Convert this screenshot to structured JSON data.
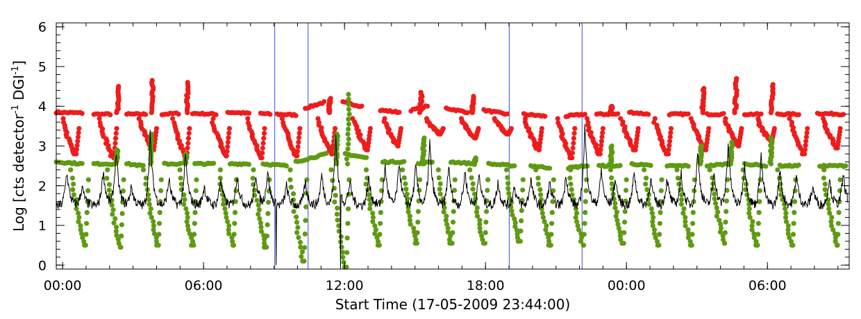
{
  "chart_data": {
    "type": "scatter",
    "title": "",
    "xlabel": "Start Time (17-05-2009 23:44:00)",
    "ylabel_parts": {
      "prefix": "Log [cts detector",
      "sup1": "-1",
      "mid": " DGI",
      "sup2": "-1",
      "suffix": "]"
    },
    "x_unit": "hours since start",
    "xlim": [
      0,
      33.75
    ],
    "ylim": [
      -0.1,
      6.1
    ],
    "x_ticks": [
      {
        "x": 0.27,
        "label": "00:00"
      },
      {
        "x": 6.27,
        "label": "06:00"
      },
      {
        "x": 12.27,
        "label": "12:00"
      },
      {
        "x": 18.27,
        "label": "18:00"
      },
      {
        "x": 24.27,
        "label": "00:00"
      },
      {
        "x": 30.27,
        "label": "06:00"
      }
    ],
    "y_ticks": [
      {
        "y": 0,
        "label": "0"
      },
      {
        "y": 1,
        "label": "1"
      },
      {
        "y": 2,
        "label": "2"
      },
      {
        "y": 3,
        "label": "3"
      },
      {
        "y": 4,
        "label": "4"
      },
      {
        "y": 5,
        "label": "5"
      },
      {
        "y": 6,
        "label": "6"
      }
    ],
    "vertical_lines": [
      {
        "x": 9.3,
        "color": "#3b4bd6"
      },
      {
        "x": 10.72,
        "color": "#3b4bd6"
      },
      {
        "x": 19.28,
        "color": "#3b4bd6"
      },
      {
        "x": 22.38,
        "color": "#3b4bd6"
      }
    ],
    "series": [
      {
        "color": "#ee1c1c",
        "marker": "dot",
        "baseline_segments": [
          [
            0.0,
            3.85,
            1.1,
            3.83
          ],
          [
            1.6,
            3.8,
            2.3,
            3.8
          ],
          [
            3.0,
            3.8,
            3.8,
            3.8
          ],
          [
            4.5,
            3.8,
            5.2,
            3.82
          ],
          [
            5.8,
            3.82,
            6.8,
            3.8
          ],
          [
            7.3,
            3.85,
            8.2,
            3.82
          ],
          [
            8.7,
            3.82,
            9.1,
            3.8
          ],
          [
            9.4,
            3.8,
            10.2,
            3.78
          ],
          [
            10.6,
            3.95,
            11.4,
            4.1
          ],
          [
            12.2,
            4.1,
            13.0,
            4.0
          ],
          [
            13.8,
            3.9,
            14.6,
            3.85
          ],
          [
            15.1,
            3.9,
            15.8,
            4.0
          ],
          [
            16.6,
            3.95,
            17.5,
            3.85
          ],
          [
            18.2,
            3.9,
            19.2,
            3.8
          ],
          [
            19.9,
            3.8,
            20.8,
            3.75
          ],
          [
            21.7,
            3.75,
            22.5,
            3.8
          ],
          [
            23.0,
            3.8,
            23.9,
            3.8
          ],
          [
            24.4,
            3.85,
            25.2,
            3.8
          ],
          [
            26.1,
            3.8,
            26.9,
            3.8
          ],
          [
            27.7,
            3.8,
            28.4,
            3.8
          ],
          [
            29.3,
            3.8,
            30.0,
            3.8
          ],
          [
            30.7,
            3.8,
            31.6,
            3.8
          ],
          [
            32.4,
            3.82,
            33.5,
            3.8
          ]
        ],
        "spikes": [
          [
            2.6,
            4.5
          ],
          [
            4.05,
            4.65
          ],
          [
            5.55,
            4.6
          ],
          [
            11.6,
            4.2
          ],
          [
            15.5,
            4.35
          ],
          [
            17.7,
            4.25
          ],
          [
            23.6,
            4.0
          ],
          [
            27.5,
            4.45
          ],
          [
            28.9,
            4.7
          ],
          [
            30.45,
            4.55
          ]
        ],
        "dips": [
          [
            0.8,
            2.8
          ],
          [
            2.4,
            2.7
          ],
          [
            4.1,
            2.9
          ],
          [
            5.5,
            2.7
          ],
          [
            7.2,
            2.75
          ],
          [
            8.7,
            2.7
          ],
          [
            10.2,
            2.75
          ],
          [
            11.7,
            2.8
          ],
          [
            13.2,
            2.9
          ],
          [
            14.5,
            3.0
          ],
          [
            16.3,
            3.3
          ],
          [
            17.8,
            3.2
          ],
          [
            19.2,
            3.3
          ],
          [
            20.5,
            2.9
          ],
          [
            21.9,
            2.7
          ],
          [
            23.1,
            2.8
          ],
          [
            24.6,
            2.9
          ],
          [
            26.0,
            2.8
          ],
          [
            27.6,
            2.9
          ],
          [
            29.0,
            3.0
          ],
          [
            30.4,
            3.1
          ],
          [
            31.8,
            2.8
          ],
          [
            33.2,
            2.95
          ]
        ]
      },
      {
        "color": "#5f9a12",
        "marker": "dot",
        "baseline_segments": [
          [
            0.0,
            2.6,
            1.1,
            2.55
          ],
          [
            1.6,
            2.55,
            2.4,
            2.55
          ],
          [
            3.0,
            2.55,
            3.7,
            2.5
          ],
          [
            4.6,
            2.55,
            5.3,
            2.55
          ],
          [
            5.9,
            2.55,
            6.7,
            2.55
          ],
          [
            7.4,
            2.55,
            8.2,
            2.55
          ],
          [
            8.8,
            2.55,
            9.8,
            2.5
          ],
          [
            10.2,
            2.6,
            11.5,
            2.8
          ],
          [
            12.3,
            2.8,
            13.2,
            2.7
          ],
          [
            13.9,
            2.6,
            14.8,
            2.6
          ],
          [
            15.4,
            2.55,
            16.0,
            2.6
          ],
          [
            16.8,
            2.6,
            17.8,
            2.55
          ],
          [
            18.4,
            2.55,
            19.5,
            2.5
          ],
          [
            20.2,
            2.5,
            21.0,
            2.45
          ],
          [
            21.8,
            2.45,
            22.6,
            2.5
          ],
          [
            23.1,
            2.5,
            24.0,
            2.5
          ],
          [
            24.5,
            2.55,
            25.3,
            2.5
          ],
          [
            26.0,
            2.5,
            26.9,
            2.5
          ],
          [
            27.7,
            2.5,
            28.6,
            2.55
          ],
          [
            29.3,
            2.55,
            30.2,
            2.5
          ],
          [
            30.8,
            2.5,
            31.6,
            2.5
          ],
          [
            32.5,
            2.5,
            33.6,
            2.5
          ]
        ],
        "spikes": [
          [
            2.55,
            2.9
          ],
          [
            4.0,
            3.3
          ],
          [
            5.5,
            2.8
          ],
          [
            11.9,
            3.3
          ],
          [
            12.4,
            4.3
          ],
          [
            15.6,
            3.2
          ],
          [
            17.8,
            2.7
          ],
          [
            23.6,
            3.0
          ],
          [
            27.4,
            3.0
          ],
          [
            28.7,
            3.1
          ],
          [
            30.4,
            3.2
          ]
        ],
        "dips": [
          [
            1.2,
            0.5
          ],
          [
            2.7,
            0.45
          ],
          [
            4.3,
            0.5
          ],
          [
            5.8,
            0.5
          ],
          [
            7.5,
            0.5
          ],
          [
            8.9,
            0.45
          ],
          [
            10.5,
            0.1
          ],
          [
            12.3,
            -0.05
          ],
          [
            13.7,
            0.5
          ],
          [
            15.3,
            0.55
          ],
          [
            16.8,
            0.55
          ],
          [
            18.2,
            0.55
          ],
          [
            19.7,
            0.6
          ],
          [
            21.0,
            0.5
          ],
          [
            22.4,
            0.5
          ],
          [
            24.1,
            0.55
          ],
          [
            25.6,
            0.5
          ],
          [
            27.0,
            0.5
          ],
          [
            28.4,
            0.55
          ],
          [
            29.8,
            0.5
          ],
          [
            31.3,
            0.5
          ],
          [
            33.2,
            0.5
          ]
        ]
      },
      {
        "color": "#000000",
        "marker": "line",
        "base": 1.5,
        "peaks": [
          [
            0.45,
            2.4
          ],
          [
            1.1,
            2.0
          ],
          [
            2.0,
            2.4
          ],
          [
            2.55,
            2.9
          ],
          [
            3.2,
            2.0
          ],
          [
            4.0,
            3.3
          ],
          [
            4.8,
            2.2
          ],
          [
            5.5,
            2.8
          ],
          [
            6.3,
            2.0
          ],
          [
            7.0,
            2.2
          ],
          [
            7.7,
            2.3
          ],
          [
            8.5,
            2.3
          ],
          [
            9.0,
            2.4
          ],
          [
            9.8,
            2.0
          ],
          [
            10.6,
            2.1
          ],
          [
            11.3,
            2.3
          ],
          [
            11.9,
            3.3
          ],
          [
            12.5,
            2.1
          ],
          [
            13.3,
            2.2
          ],
          [
            14.0,
            2.5
          ],
          [
            14.6,
            2.6
          ],
          [
            15.3,
            2.5
          ],
          [
            15.9,
            3.1
          ],
          [
            16.7,
            2.5
          ],
          [
            17.4,
            2.4
          ],
          [
            18.0,
            2.3
          ],
          [
            18.8,
            2.1
          ],
          [
            19.5,
            2.0
          ],
          [
            20.2,
            2.2
          ],
          [
            21.0,
            2.1
          ],
          [
            21.7,
            2.3
          ],
          [
            22.5,
            3.5
          ],
          [
            23.2,
            2.4
          ],
          [
            23.8,
            2.2
          ],
          [
            24.6,
            2.4
          ],
          [
            25.3,
            2.2
          ],
          [
            26.0,
            2.2
          ],
          [
            26.6,
            2.3
          ],
          [
            27.3,
            2.9
          ],
          [
            28.0,
            2.4
          ],
          [
            28.6,
            3.1
          ],
          [
            29.3,
            2.6
          ],
          [
            30.0,
            2.8
          ],
          [
            30.8,
            2.4
          ],
          [
            31.5,
            2.3
          ],
          [
            32.2,
            2.0
          ],
          [
            32.9,
            2.2
          ],
          [
            33.5,
            2.3
          ]
        ],
        "drops": [
          [
            9.35,
            0.0
          ],
          [
            12.1,
            -0.1
          ]
        ]
      }
    ]
  }
}
